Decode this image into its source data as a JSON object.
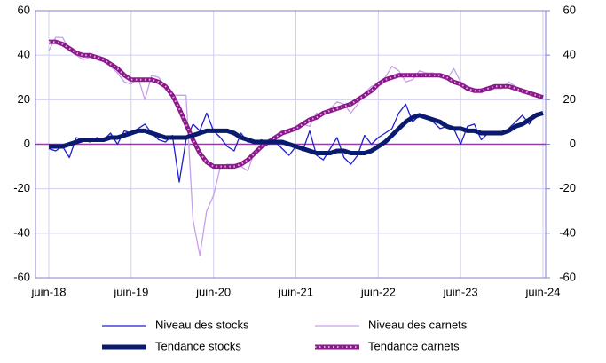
{
  "chart_data": {
    "type": "line",
    "categories": [
      "juin-18",
      null,
      null,
      null,
      null,
      null,
      null,
      null,
      null,
      null,
      null,
      null,
      "juin-19",
      null,
      null,
      null,
      null,
      null,
      null,
      null,
      null,
      null,
      null,
      null,
      "juin-20",
      null,
      null,
      null,
      null,
      null,
      null,
      null,
      null,
      null,
      null,
      null,
      "juin-21",
      null,
      null,
      null,
      null,
      null,
      null,
      null,
      null,
      null,
      null,
      null,
      "juin-22",
      null,
      null,
      null,
      null,
      null,
      null,
      null,
      null,
      null,
      null,
      null,
      "juin-23",
      null,
      null,
      null,
      null,
      null,
      null,
      null,
      null,
      null,
      null,
      null,
      "juin-24"
    ],
    "series": [
      {
        "name": "Niveau des stocks",
        "color": "#1f1fd0",
        "width": 1.3,
        "values": [
          -2,
          -3,
          -1,
          -6,
          3,
          2,
          1,
          3,
          2,
          5,
          0,
          6,
          5,
          7,
          9,
          5,
          2,
          1,
          4,
          -17,
          2,
          9,
          6,
          14,
          6,
          3,
          -1,
          -3,
          5,
          1,
          1,
          2,
          0,
          1,
          -2,
          -5,
          -1,
          -3,
          6,
          -5,
          -7,
          -2,
          3,
          -6,
          -9,
          -5,
          4,
          0,
          3,
          5,
          7,
          14,
          18,
          10,
          13,
          12,
          10,
          7,
          8,
          7,
          0,
          8,
          9,
          2,
          5,
          5,
          5,
          7,
          10,
          13,
          9,
          14,
          14
        ]
      },
      {
        "name": "Niveau des carnets",
        "color": "#c8a0e8",
        "width": 1.3,
        "values": [
          42,
          48,
          48,
          42,
          40,
          38,
          39,
          38,
          37,
          35,
          32,
          28,
          27,
          30,
          20,
          31,
          30,
          26,
          22,
          22,
          22,
          -34,
          -50,
          -30,
          -23,
          -10,
          -9,
          -9,
          -10,
          -12,
          -3,
          -1,
          2,
          4,
          6,
          5,
          7,
          9,
          8,
          14,
          13,
          16,
          19,
          18,
          14,
          18,
          23,
          26,
          27,
          30,
          35,
          33,
          28,
          29,
          33,
          32,
          32,
          30,
          29,
          34,
          28,
          26,
          25,
          24,
          24,
          25,
          25,
          28,
          26,
          23,
          23,
          22,
          21
        ]
      },
      {
        "name": "Tendance stocks",
        "color": "#0a1a6e",
        "width": 5,
        "values": [
          -1,
          -1,
          -1,
          0,
          1,
          2,
          2,
          2,
          2,
          3,
          3,
          4,
          5,
          6,
          6,
          5,
          4,
          3,
          3,
          3,
          3,
          4,
          5,
          6,
          6,
          6,
          6,
          5,
          3,
          2,
          1,
          1,
          1,
          1,
          1,
          0,
          -1,
          -2,
          -3,
          -4,
          -4,
          -4,
          -3,
          -3,
          -4,
          -4,
          -4,
          -3,
          -1,
          1,
          4,
          7,
          10,
          12,
          13,
          12,
          11,
          10,
          8,
          7,
          7,
          6,
          6,
          5,
          5,
          5,
          5,
          6,
          8,
          9,
          11,
          13,
          14
        ]
      },
      {
        "name": "Tendance carnets",
        "color": "#8a1a8a",
        "width": 5,
        "dotted": true,
        "values": [
          46,
          46,
          45,
          43,
          41,
          40,
          40,
          39,
          38,
          36,
          34,
          31,
          29,
          29,
          29,
          29,
          28,
          26,
          22,
          16,
          9,
          2,
          -4,
          -8,
          -10,
          -10,
          -10,
          -10,
          -9,
          -7,
          -4,
          -1,
          1,
          3,
          5,
          6,
          7,
          9,
          11,
          12,
          14,
          15,
          16,
          17,
          18,
          20,
          22,
          24,
          27,
          29,
          30,
          31,
          31,
          31,
          31,
          31,
          31,
          31,
          30,
          28,
          27,
          25,
          24,
          24,
          25,
          26,
          26,
          26,
          25,
          24,
          23,
          22,
          21
        ]
      }
    ],
    "ylim": [
      -60,
      60
    ],
    "yticks": [
      -60,
      -40,
      -20,
      0,
      20,
      40,
      60
    ],
    "y2lim": [
      -60,
      60
    ],
    "y2ticks": [
      -60,
      -40,
      -20,
      0,
      20,
      40,
      60
    ],
    "grid": true
  }
}
